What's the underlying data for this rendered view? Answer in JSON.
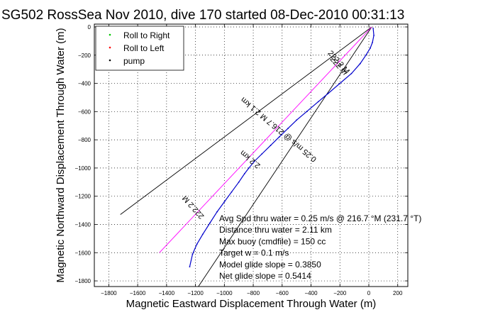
{
  "chart_data": {
    "type": "line",
    "title": "SG502 RossSea Nov 2010, dive 170 started 08-Dec-2010 00:31:13",
    "xlabel": "Magnetic Eastward Displacement Through Water (m)",
    "ylabel": "Magnetic Northward Displacement Through Water (m)",
    "xlim": [
      -1900,
      270
    ],
    "ylim": [
      -1840,
      20
    ],
    "xticks": [
      -1800,
      -1600,
      -1400,
      -1200,
      -1000,
      -800,
      -600,
      -400,
      -200,
      0,
      200
    ],
    "yticks": [
      0,
      -200,
      -400,
      -600,
      -800,
      -1000,
      -1200,
      -1400,
      -1600,
      -1800
    ],
    "grid": true,
    "legend_position": "top-left",
    "legend": [
      {
        "label": "Roll to Right",
        "color": "#00c800",
        "marker": "dot"
      },
      {
        "label": "Roll to Left",
        "color": "#ff0000",
        "marker": "dot"
      },
      {
        "label": "pump",
        "color": "#000000",
        "marker": "dot"
      }
    ],
    "series": [
      {
        "style": "glider-track",
        "color": "#0000cc",
        "x": [
          30,
          35,
          25,
          10,
          -20,
          -60,
          -120,
          -200,
          -280,
          -350,
          -430,
          -500,
          -560,
          -620,
          -680,
          -740,
          -790,
          -830,
          -860,
          -900,
          -950,
          -1000,
          -1050,
          -1100,
          -1150,
          -1190,
          -1220,
          -1240
        ],
        "y": [
          -10,
          -60,
          -110,
          -150,
          -200,
          -260,
          -330,
          -400,
          -470,
          -530,
          -600,
          -660,
          -720,
          -780,
          -840,
          -900,
          -950,
          -1000,
          -1040,
          -1100,
          -1170,
          -1240,
          -1310,
          -1390,
          -1470,
          -1540,
          -1610,
          -1700
        ]
      },
      {
        "style": "desired-heading-line",
        "color": "#ff00ff",
        "x": [
          20,
          -1450
        ],
        "y": [
          0,
          -1600
        ]
      },
      {
        "style": "course-envelope",
        "color": "#000000",
        "x": [
          20,
          -1720
        ],
        "y": [
          0,
          -1330
        ]
      },
      {
        "style": "course-envelope",
        "color": "#000000",
        "x": [
          20,
          -1180
        ],
        "y": [
          0,
          -1840
        ]
      }
    ],
    "annotations": [
      {
        "text": "222.2 M",
        "rotation": "along upper envelope line"
      },
      {
        "text": "0.25 m/s @ 216.7 M 2.1 km",
        "rotation": "along track"
      },
      {
        "text": "222 m",
        "rotation": "along track"
      },
      {
        "text": "2.2 km",
        "rotation": "along track"
      },
      {
        "text": "222.2 M",
        "rotation": "along heading line"
      }
    ],
    "stats_text": [
      "Avg Spd thru water =  0.25 m/s @ 216.7   °M (231.7 °T)",
      "Distance thru water =  2.11 km",
      "Max buoy (cmdfile) = 150 cc",
      "Target w = 0.1 m/s",
      "Model glide slope = 0.3850",
      "Net glide slope = 0.5414"
    ]
  }
}
